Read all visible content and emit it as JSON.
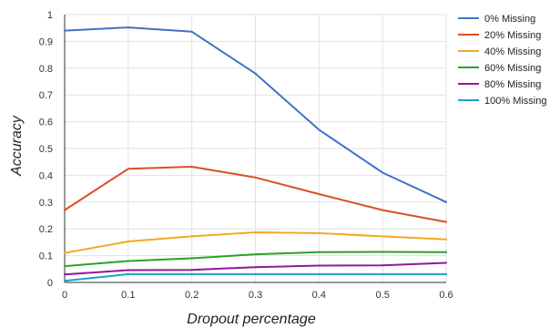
{
  "chart_data": {
    "type": "line",
    "xlabel": "Dropout percentage",
    "ylabel": "Accuracy",
    "x": [
      0,
      0.1,
      0.2,
      0.3,
      0.4,
      0.5,
      0.6
    ],
    "x_ticks": [
      "0",
      "0.1",
      "0.2",
      "0.3",
      "0.4",
      "0.5",
      "0.6"
    ],
    "y_ticks": [
      "0",
      "0.1",
      "0.2",
      "0.3",
      "0.4",
      "0.5",
      "0.6",
      "0.7",
      "0.8",
      "0.9",
      "1"
    ],
    "xlim": [
      0,
      0.6
    ],
    "ylim": [
      0,
      1
    ],
    "grid": true,
    "legend_position": "right",
    "series": [
      {
        "name": "0% Missing",
        "color": "#4472c4",
        "values": [
          0.94,
          0.952,
          0.936,
          0.78,
          0.57,
          0.41,
          0.3
        ]
      },
      {
        "name": "20% Missing",
        "color": "#dc4f24",
        "values": [
          0.27,
          0.424,
          0.432,
          0.392,
          0.33,
          0.27,
          0.226
        ]
      },
      {
        "name": "40% Missing",
        "color": "#f5a623",
        "values": [
          0.11,
          0.153,
          0.172,
          0.187,
          0.184,
          0.172,
          0.161
        ]
      },
      {
        "name": "60% Missing",
        "color": "#2ca02c",
        "values": [
          0.061,
          0.08,
          0.09,
          0.105,
          0.113,
          0.114,
          0.113
        ]
      },
      {
        "name": "80% Missing",
        "color": "#8e1a94",
        "values": [
          0.03,
          0.046,
          0.047,
          0.057,
          0.063,
          0.064,
          0.073
        ]
      },
      {
        "name": "100% Missing",
        "color": "#1ea0c8",
        "values": [
          0.006,
          0.031,
          0.031,
          0.031,
          0.031,
          0.031,
          0.031
        ]
      }
    ]
  }
}
